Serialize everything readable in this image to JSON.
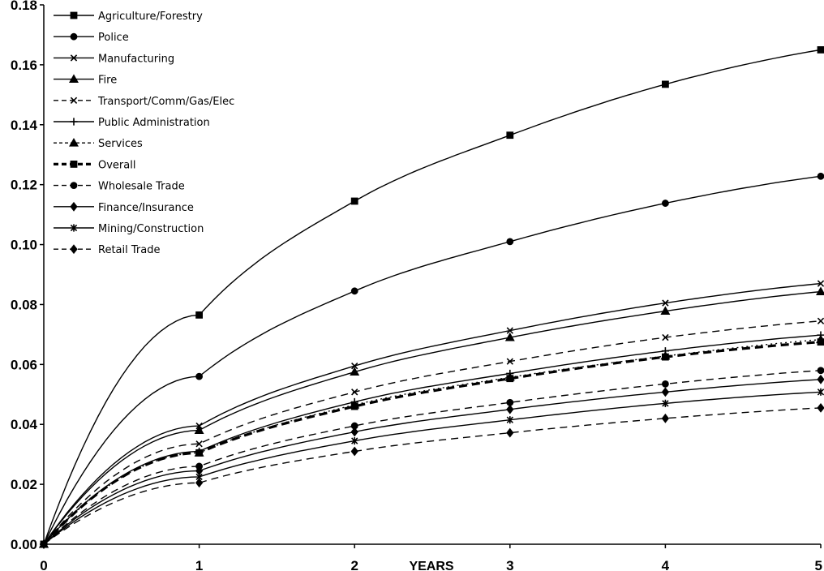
{
  "chart_data": {
    "type": "line",
    "title": "",
    "xlabel": "YEARS",
    "ylabel": "",
    "xlim": [
      0,
      5
    ],
    "ylim": [
      0,
      0.18
    ],
    "x_ticks": [
      "0",
      "1",
      "2",
      "3",
      "4",
      "5"
    ],
    "y_ticks": [
      "0.00",
      "0.02",
      "0.04",
      "0.06",
      "0.08",
      "0.10",
      "0.12",
      "0.14",
      "0.16",
      "0.18"
    ],
    "grid": false,
    "legend_position": "top-left",
    "series": [
      {
        "name": "Agriculture/Forestry",
        "line": "solid",
        "marker": "square",
        "x": [
          0,
          1,
          2,
          3,
          4,
          5
        ],
        "values": [
          0,
          0.0765,
          0.1145,
          0.1365,
          0.1535,
          0.165
        ]
      },
      {
        "name": "Police",
        "line": "solid",
        "marker": "circle",
        "x": [
          0,
          1,
          2,
          3,
          4,
          5
        ],
        "values": [
          0,
          0.056,
          0.0845,
          0.101,
          0.1138,
          0.1228
        ]
      },
      {
        "name": "Manufacturing",
        "line": "solid",
        "marker": "x",
        "x": [
          0,
          1,
          2,
          3,
          4,
          5
        ],
        "values": [
          0,
          0.0395,
          0.0595,
          0.0713,
          0.0805,
          0.087
        ]
      },
      {
        "name": "Fire",
        "line": "solid",
        "marker": "triangle",
        "x": [
          0,
          1,
          2,
          3,
          4,
          5
        ],
        "values": [
          0,
          0.038,
          0.0575,
          0.069,
          0.0778,
          0.0843
        ]
      },
      {
        "name": "Transport/Comm/Gas/Elec",
        "line": "dashed",
        "marker": "x",
        "x": [
          0,
          1,
          2,
          3,
          4,
          5
        ],
        "values": [
          0,
          0.0335,
          0.0508,
          0.061,
          0.069,
          0.0745
        ]
      },
      {
        "name": "Public Administration",
        "line": "solid",
        "marker": "plus",
        "x": [
          0,
          1,
          2,
          3,
          4,
          5
        ],
        "values": [
          0,
          0.031,
          0.0475,
          0.057,
          0.0645,
          0.0698
        ]
      },
      {
        "name": "Services",
        "line": "dotted",
        "marker": "triangle",
        "x": [
          0,
          1,
          2,
          3,
          4,
          5
        ],
        "values": [
          0,
          0.0305,
          0.0465,
          0.0557,
          0.0628,
          0.0683
        ]
      },
      {
        "name": "Overall",
        "line": "bold-dashed",
        "marker": "square",
        "x": [
          0,
          1,
          2,
          3,
          4,
          5
        ],
        "values": [
          0,
          0.0305,
          0.046,
          0.0553,
          0.0625,
          0.0675
        ]
      },
      {
        "name": "Wholesale Trade",
        "line": "dashed",
        "marker": "circle",
        "x": [
          0,
          1,
          2,
          3,
          4,
          5
        ],
        "values": [
          0,
          0.026,
          0.0395,
          0.0473,
          0.0535,
          0.058
        ]
      },
      {
        "name": "Finance/Insurance",
        "line": "solid",
        "marker": "diamond",
        "x": [
          0,
          1,
          2,
          3,
          4,
          5
        ],
        "values": [
          0,
          0.0245,
          0.0375,
          0.045,
          0.0508,
          0.055
        ]
      },
      {
        "name": "Mining/Construction",
        "line": "solid",
        "marker": "asterisk",
        "x": [
          0,
          1,
          2,
          3,
          4,
          5
        ],
        "values": [
          0,
          0.0225,
          0.0345,
          0.0415,
          0.047,
          0.0508
        ]
      },
      {
        "name": "Retail Trade",
        "line": "dashed",
        "marker": "diamond",
        "x": [
          0,
          1,
          2,
          3,
          4,
          5
        ],
        "values": [
          0,
          0.0205,
          0.031,
          0.0372,
          0.042,
          0.0455
        ]
      }
    ]
  }
}
